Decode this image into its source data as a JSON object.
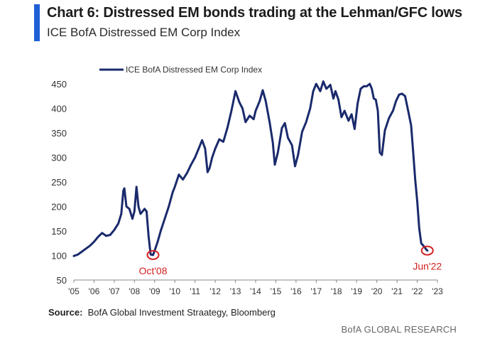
{
  "header": {
    "title": "Chart 6: Distressed EM bonds trading at the Lehman/GFC lows",
    "subtitle": "ICE BofA Distressed EM Corp Index"
  },
  "footer": {
    "source_label": "Source:",
    "source_text": "BofA Global Investment Straategy, Bloomberg",
    "brand": "BofA GLOBAL RESEARCH"
  },
  "colors": {
    "accent": "#1f5fd6",
    "series": "#1a2a6c",
    "annotation": "#d42020"
  },
  "chart_data": {
    "type": "line",
    "ylim": [
      50,
      450
    ],
    "xlim": [
      2005,
      2023
    ],
    "y_ticks": [
      450,
      400,
      350,
      300,
      250,
      200,
      150,
      100,
      50
    ],
    "x_ticks": [
      {
        "year": 2005,
        "label": "'05"
      },
      {
        "year": 2006,
        "label": "'06"
      },
      {
        "year": 2007,
        "label": "'07"
      },
      {
        "year": 2008,
        "label": "'08"
      },
      {
        "year": 2009,
        "label": "'09"
      },
      {
        "year": 2010,
        "label": "'10"
      },
      {
        "year": 2011,
        "label": "'11"
      },
      {
        "year": 2012,
        "label": "'12"
      },
      {
        "year": 2013,
        "label": "'13"
      },
      {
        "year": 2014,
        "label": "'14"
      },
      {
        "year": 2015,
        "label": "'15"
      },
      {
        "year": 2016,
        "label": "'16"
      },
      {
        "year": 2017,
        "label": "'17"
      },
      {
        "year": 2018,
        "label": "'18"
      },
      {
        "year": 2019,
        "label": "'19"
      },
      {
        "year": 2020,
        "label": "'20"
      },
      {
        "year": 2021,
        "label": "'21"
      },
      {
        "year": 2022,
        "label": "'22"
      },
      {
        "year": 2023,
        "label": "'23"
      }
    ],
    "legend": {
      "position": "top",
      "entry": "ICE BofA Distressed EM Corp Index"
    },
    "grid": false,
    "series": [
      {
        "name": "ICE BofA Distressed EM Corp Index",
        "points": [
          [
            2005.0,
            99
          ],
          [
            2005.2,
            102
          ],
          [
            2005.4,
            108
          ],
          [
            2005.6,
            114
          ],
          [
            2005.8,
            120
          ],
          [
            2006.0,
            128
          ],
          [
            2006.2,
            138
          ],
          [
            2006.4,
            146
          ],
          [
            2006.6,
            140
          ],
          [
            2006.8,
            142
          ],
          [
            2007.0,
            152
          ],
          [
            2007.2,
            165
          ],
          [
            2007.35,
            185
          ],
          [
            2007.45,
            232
          ],
          [
            2007.5,
            237
          ],
          [
            2007.6,
            200
          ],
          [
            2007.75,
            195
          ],
          [
            2007.9,
            175
          ],
          [
            2008.0,
            190
          ],
          [
            2008.1,
            240
          ],
          [
            2008.2,
            200
          ],
          [
            2008.3,
            185
          ],
          [
            2008.5,
            195
          ],
          [
            2008.6,
            190
          ],
          [
            2008.7,
            140
          ],
          [
            2008.8,
            102
          ],
          [
            2008.92,
            101
          ],
          [
            2009.0,
            110
          ],
          [
            2009.15,
            128
          ],
          [
            2009.3,
            150
          ],
          [
            2009.5,
            175
          ],
          [
            2009.7,
            200
          ],
          [
            2009.9,
            230
          ],
          [
            2010.0,
            240
          ],
          [
            2010.2,
            265
          ],
          [
            2010.4,
            255
          ],
          [
            2010.6,
            268
          ],
          [
            2010.8,
            285
          ],
          [
            2011.0,
            300
          ],
          [
            2011.2,
            320
          ],
          [
            2011.35,
            335
          ],
          [
            2011.5,
            318
          ],
          [
            2011.62,
            270
          ],
          [
            2011.72,
            278
          ],
          [
            2011.85,
            300
          ],
          [
            2012.0,
            318
          ],
          [
            2012.2,
            337
          ],
          [
            2012.4,
            332
          ],
          [
            2012.6,
            360
          ],
          [
            2012.8,
            395
          ],
          [
            2013.0,
            435
          ],
          [
            2013.2,
            412
          ],
          [
            2013.35,
            400
          ],
          [
            2013.5,
            372
          ],
          [
            2013.7,
            385
          ],
          [
            2013.9,
            378
          ],
          [
            2014.0,
            395
          ],
          [
            2014.2,
            415
          ],
          [
            2014.35,
            437
          ],
          [
            2014.5,
            415
          ],
          [
            2014.7,
            370
          ],
          [
            2014.85,
            330
          ],
          [
            2014.95,
            285
          ],
          [
            2015.1,
            310
          ],
          [
            2015.3,
            360
          ],
          [
            2015.45,
            370
          ],
          [
            2015.6,
            340
          ],
          [
            2015.8,
            325
          ],
          [
            2015.95,
            282
          ],
          [
            2016.1,
            305
          ],
          [
            2016.3,
            352
          ],
          [
            2016.5,
            372
          ],
          [
            2016.7,
            400
          ],
          [
            2016.85,
            435
          ],
          [
            2017.0,
            450
          ],
          [
            2017.2,
            435
          ],
          [
            2017.35,
            455
          ],
          [
            2017.5,
            440
          ],
          [
            2017.7,
            448
          ],
          [
            2017.85,
            420
          ],
          [
            2017.95,
            435
          ],
          [
            2018.1,
            418
          ],
          [
            2018.25,
            382
          ],
          [
            2018.4,
            395
          ],
          [
            2018.6,
            375
          ],
          [
            2018.75,
            388
          ],
          [
            2018.9,
            358
          ],
          [
            2019.05,
            410
          ],
          [
            2019.2,
            440
          ],
          [
            2019.35,
            445
          ],
          [
            2019.5,
            445
          ],
          [
            2019.65,
            450
          ],
          [
            2019.75,
            440
          ],
          [
            2019.85,
            420
          ],
          [
            2019.95,
            418
          ],
          [
            2020.05,
            395
          ],
          [
            2020.15,
            310
          ],
          [
            2020.25,
            305
          ],
          [
            2020.4,
            355
          ],
          [
            2020.6,
            380
          ],
          [
            2020.8,
            395
          ],
          [
            2020.95,
            415
          ],
          [
            2021.1,
            428
          ],
          [
            2021.25,
            430
          ],
          [
            2021.4,
            425
          ],
          [
            2021.55,
            395
          ],
          [
            2021.7,
            365
          ],
          [
            2021.8,
            310
          ],
          [
            2021.9,
            255
          ],
          [
            2022.0,
            210
          ],
          [
            2022.1,
            155
          ],
          [
            2022.2,
            125
          ],
          [
            2022.35,
            118
          ],
          [
            2022.45,
            112
          ],
          [
            2022.5,
            110
          ]
        ]
      }
    ],
    "annotations": [
      {
        "label": "Oct'08",
        "x": 2008.92,
        "y": 101
      },
      {
        "label": "Jun'22",
        "x": 2022.5,
        "y": 110
      }
    ]
  }
}
